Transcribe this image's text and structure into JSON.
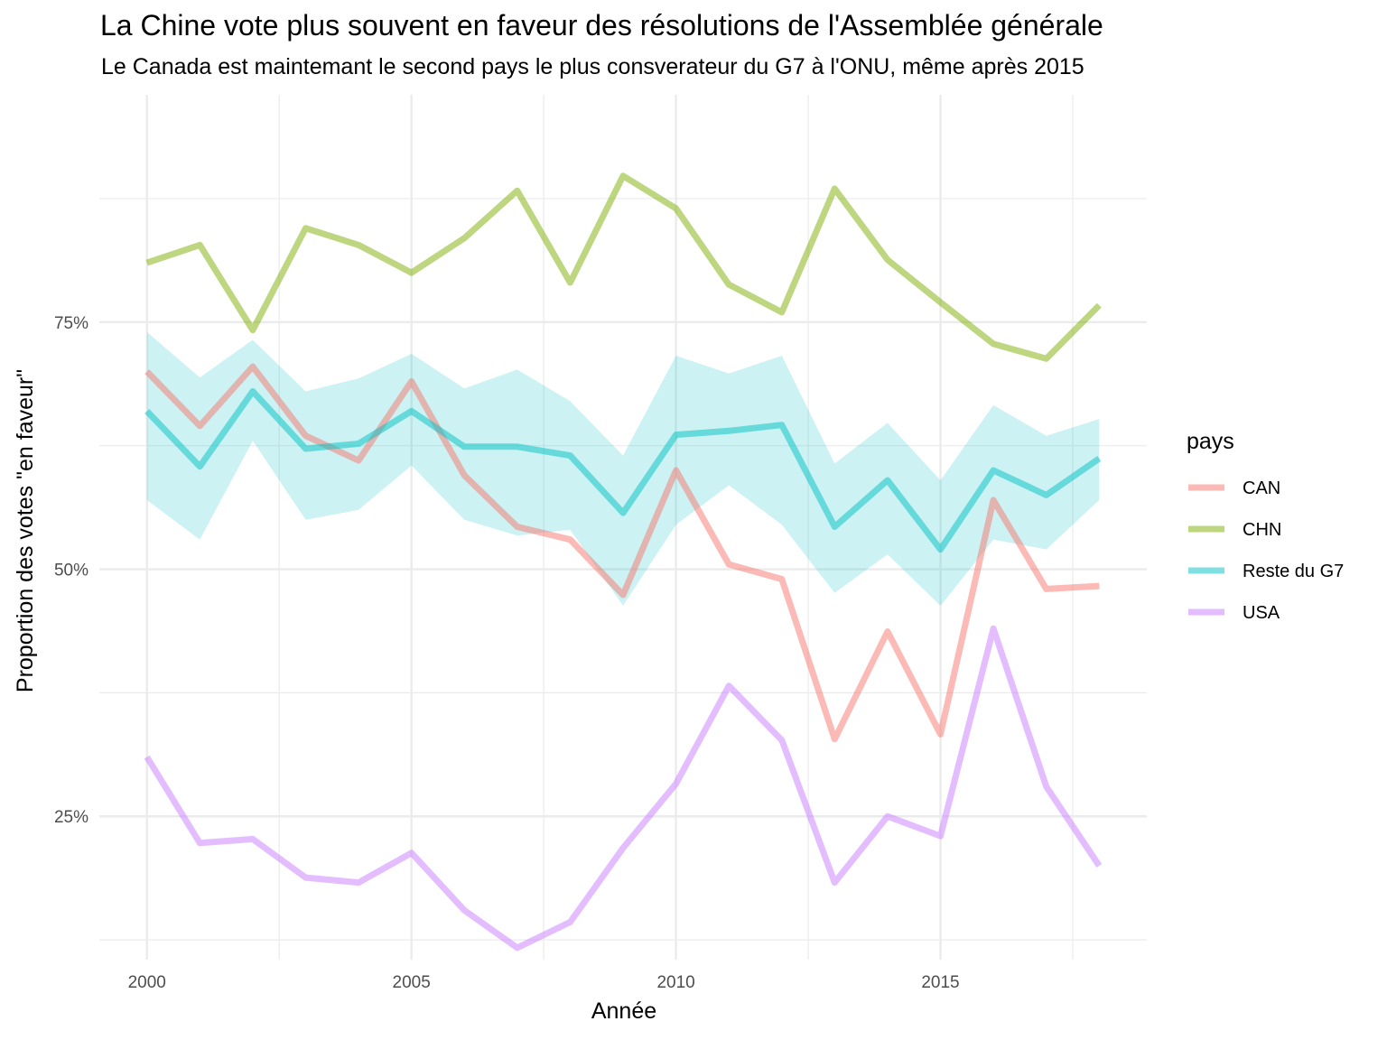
{
  "chart_data": {
    "type": "line",
    "title": "La Chine vote plus souvent en faveur des résolutions de l'Assemblée générale",
    "subtitle": "Le Canada est maintemant le second pays le plus consverateur du G7 à l'ONU, même après 2015",
    "xlabel": "Année",
    "ylabel": "Proportion des votes \"en faveur\"",
    "x_ticks": [
      "2000",
      "2005",
      "2010",
      "2015"
    ],
    "y_ticks": [
      "25%",
      "50%",
      "75%"
    ],
    "xlim": [
      1999.1,
      2018.9
    ],
    "ylim": [
      0.105,
      0.98
    ],
    "grid": true,
    "legend": {
      "title": "pays",
      "position": "right"
    },
    "x": [
      2000,
      2001,
      2002,
      2003,
      2004,
      2005,
      2006,
      2007,
      2008,
      2009,
      2010,
      2011,
      2012,
      2013,
      2014,
      2015,
      2016,
      2017,
      2018
    ],
    "series": [
      {
        "name": "CAN",
        "color": "#F8766D",
        "values": [
          0.7,
          0.645,
          0.705,
          0.635,
          0.61,
          0.69,
          0.595,
          0.543,
          0.53,
          0.474,
          0.6,
          0.505,
          0.49,
          0.328,
          0.437,
          0.333,
          0.57,
          0.48,
          0.483
        ]
      },
      {
        "name": "CHN",
        "color": "#7CAE00",
        "values": [
          0.81,
          0.828,
          0.742,
          0.845,
          0.828,
          0.8,
          0.835,
          0.883,
          0.79,
          0.898,
          0.865,
          0.788,
          0.76,
          0.885,
          0.813,
          0.77,
          0.728,
          0.713,
          0.767
        ]
      },
      {
        "name": "Reste du G7",
        "color": "#00BFC4",
        "values": [
          0.66,
          0.604,
          0.68,
          0.622,
          0.627,
          0.66,
          0.624,
          0.624,
          0.615,
          0.557,
          0.636,
          0.64,
          0.646,
          0.543,
          0.59,
          0.52,
          0.6,
          0.575,
          0.612
        ],
        "band_low": [
          0.57,
          0.53,
          0.63,
          0.55,
          0.56,
          0.605,
          0.55,
          0.534,
          0.54,
          0.463,
          0.545,
          0.585,
          0.545,
          0.476,
          0.515,
          0.463,
          0.53,
          0.52,
          0.57
        ],
        "band_high": [
          0.74,
          0.694,
          0.732,
          0.68,
          0.693,
          0.718,
          0.683,
          0.702,
          0.67,
          0.615,
          0.716,
          0.698,
          0.716,
          0.607,
          0.648,
          0.59,
          0.666,
          0.635,
          0.652
        ]
      },
      {
        "name": "USA",
        "color": "#C77CFF",
        "values": [
          0.31,
          0.223,
          0.227,
          0.188,
          0.183,
          0.213,
          0.155,
          0.117,
          0.143,
          0.218,
          0.283,
          0.382,
          0.327,
          0.183,
          0.25,
          0.23,
          0.44,
          0.28,
          0.2
        ]
      }
    ]
  }
}
